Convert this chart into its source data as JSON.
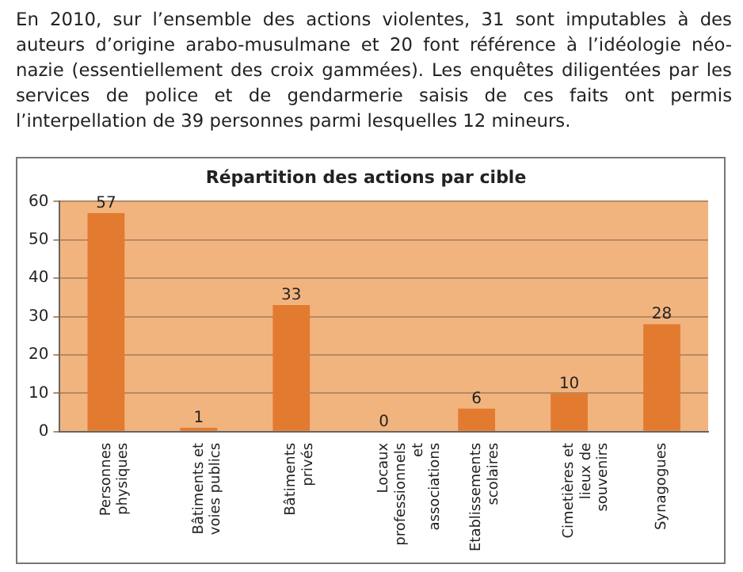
{
  "chart_data": {
    "type": "bar",
    "title": "Répartition des actions par cible",
    "annotations": [
      "En 2010, sur l’ensemble des actions violentes, 31 sont imputables à des auteurs d’origine arabo-musulmane et 20 font référence à l’idéologie néo-nazie (essentiellement des croix gammées). Les enquêtes diligentées par les services de police et de gendarmerie saisis de ces faits ont permis l’interpellation de 39 personnes parmi lesquelles 12 mineurs."
    ],
    "categories": [
      "Personnes physiques",
      "Bâtiments et voies publics",
      "Bâtiments privés",
      "Locaux professionnels et associations",
      "Etablissements scolaires",
      "Cimetières et lieux de souvenirs",
      "Synagogues"
    ],
    "values": [
      57,
      1,
      33,
      0,
      6,
      10,
      28
    ],
    "color": "#e27b30",
    "ylim": [
      0,
      60
    ],
    "yticks": [
      0,
      10,
      20,
      30,
      40,
      50,
      60
    ],
    "grid": "y",
    "data_labels": true
  }
}
